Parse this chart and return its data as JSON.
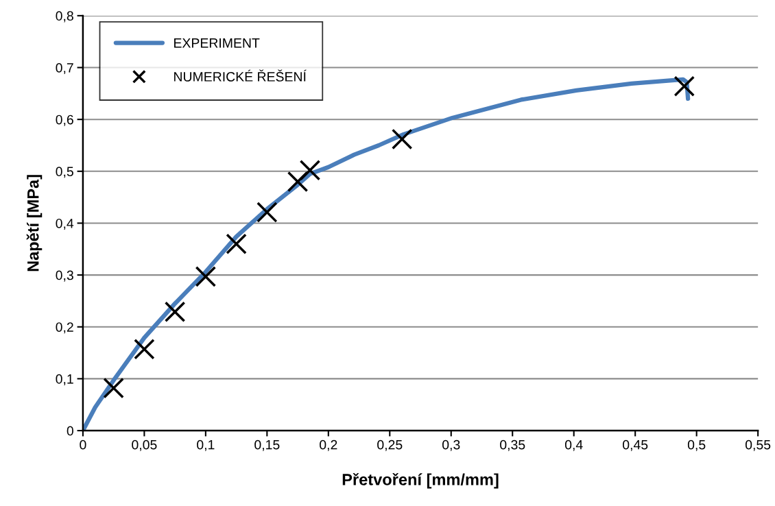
{
  "chart_data": {
    "type": "line",
    "xlabel": "Přetvoření [mm/mm]",
    "ylabel": "Napětí [MPa]",
    "series": [
      {
        "name": "EXPERIMENT",
        "color": "#4a7ebb",
        "line_style": "solid",
        "marker": "none",
        "x": [
          0,
          0.01,
          0.025,
          0.05,
          0.075,
          0.1,
          0.125,
          0.15,
          0.175,
          0.185,
          0.2,
          0.221,
          0.241,
          0.261,
          0.301,
          0.357,
          0.402,
          0.447,
          0.489,
          0.492,
          0.493
        ],
        "values": [
          0,
          0.045,
          0.097,
          0.179,
          0.245,
          0.306,
          0.374,
          0.427,
          0.474,
          0.495,
          0.508,
          0.532,
          0.55,
          0.571,
          0.603,
          0.638,
          0.656,
          0.669,
          0.677,
          0.672,
          0.64
        ]
      },
      {
        "name": "NUMERICKÉ ŘEŠENÍ",
        "type": "scatter",
        "color": "#000000",
        "marker": "cross",
        "x": [
          0.025,
          0.05,
          0.075,
          0.1,
          0.125,
          0.15,
          0.175,
          0.185,
          0.26,
          0.49
        ],
        "values": [
          0.082,
          0.157,
          0.229,
          0.297,
          0.36,
          0.421,
          0.48,
          0.502,
          0.562,
          0.664
        ]
      }
    ],
    "xlim": [
      0,
      0.55
    ],
    "xticks": [
      0,
      {
        "value": 0.05,
        "label": "0,05"
      },
      {
        "value": 0.1,
        "label": "0,1"
      },
      {
        "value": 0.15,
        "label": "0,15"
      },
      {
        "value": 0.2,
        "label": "0,2"
      },
      {
        "value": 0.25,
        "label": "0,25"
      },
      {
        "value": 0.3,
        "label": "0,3"
      },
      {
        "value": 0.35,
        "label": "0,35"
      },
      {
        "value": 0.4,
        "label": "0,4"
      },
      {
        "value": 0.45,
        "label": "0,45"
      },
      {
        "value": 0.5,
        "label": "0,5"
      },
      {
        "value": 0.55,
        "label": "0,55"
      }
    ],
    "ylim": [
      0,
      0.8
    ],
    "yticks": [
      0,
      {
        "value": 0.1,
        "label": "0,1"
      },
      {
        "value": 0.2,
        "label": "0,2"
      },
      {
        "value": 0.3,
        "label": "0,3"
      },
      {
        "value": 0.4,
        "label": "0,4"
      },
      {
        "value": 0.5,
        "label": "0,5"
      },
      {
        "value": 0.6,
        "label": "0,6"
      },
      {
        "value": 0.7,
        "label": "0,7"
      },
      {
        "value": 0.8,
        "label": "0,8"
      }
    ],
    "grid": "y",
    "legend": "top left"
  }
}
